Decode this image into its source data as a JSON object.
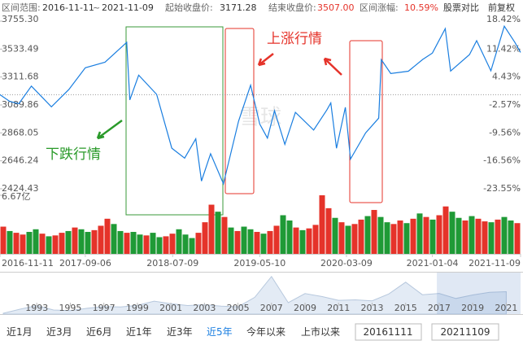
{
  "header": {
    "range_label": "区间范围:",
    "range_start": "2016-11-11",
    "range_sep": "~",
    "range_end": "2021-11-09",
    "start_label": "起始收盘价:",
    "start_price": 3171.28,
    "end_label": "结束收盘价:",
    "end_price": "3507.00",
    "change_label": "区间涨幅:",
    "change": "10.59%",
    "compare": "股票对比",
    "adjust": "前复权"
  },
  "chart_data": {
    "type": "line",
    "color": "#1a7ee0",
    "x": [
      "2016-11-11",
      "2016-12-15",
      "2017-01-16",
      "2017-03-01",
      "2017-05-10",
      "2017-07-10",
      "2017-09-06",
      "2017-11-14",
      "2018-01-29",
      "2018-02-09",
      "2018-03-12",
      "2018-05-14",
      "2018-07-06",
      "2018-08-20",
      "2018-09-28",
      "2018-10-18",
      "2018-11-19",
      "2019-01-03",
      "2019-02-25",
      "2019-04-08",
      "2019-05-10",
      "2019-06-06",
      "2019-07-01",
      "2019-08-06",
      "2019-09-12",
      "2019-11-15",
      "2019-12-31",
      "2020-01-14",
      "2020-02-03",
      "2020-03-05",
      "2020-03-23",
      "2020-05-15",
      "2020-06-30",
      "2020-07-09",
      "2020-08-11",
      "2020-10-12",
      "2020-12-01",
      "2021-01-04",
      "2021-02-18",
      "2021-03-09",
      "2021-05-14",
      "2021-06-08",
      "2021-07-28",
      "2021-09-13",
      "2021-10-20",
      "2021-11-09"
    ],
    "values": [
      3171.28,
      3118,
      3100,
      3240,
      3075,
      3212,
      3385,
      3430,
      3587,
      3130,
      3326,
      3174,
      2747,
      2668,
      2821,
      2486,
      2703,
      2464,
      2961,
      3247,
      2939,
      2827,
      3044,
      2777,
      3031,
      2891,
      3050,
      3106,
      2746,
      3071,
      2660,
      2868,
      2985,
      3450,
      3340,
      3358,
      3451,
      3502,
      3696,
      3359,
      3490,
      3600,
      3361,
      3715,
      3587,
      3507
    ],
    "xlim": [
      "2016-11-11",
      "2021-11-09"
    ],
    "xticks": [
      "2016-11-11",
      "2017-09-06",
      "2018-07-09",
      "2019-05-10",
      "2020-03-09",
      "2021-01-04",
      "2021-11-09"
    ],
    "ylim": [
      2424.43,
      3755.3
    ],
    "yticks": [
      {
        "value": 3755.3,
        "label": "3755.30"
      },
      3533.49,
      3311.68,
      3089.86,
      2868.05,
      2646.24,
      2424.43
    ],
    "y2lim": [
      -23.55,
      18.42
    ],
    "y2ticks": [
      {
        "value": 18.42,
        "label": "18.42%"
      },
      {
        "value": 11.42,
        "label": "11.42%"
      },
      {
        "value": 4.43,
        "label": "4.43%"
      },
      {
        "value": -2.57,
        "label": "-2.57%"
      },
      {
        "value": -9.56,
        "label": "-9.56%"
      },
      {
        "value": -16.56,
        "label": "-16.56%"
      },
      {
        "value": -23.55,
        "label": "-23.55%"
      }
    ],
    "up_color": "#e5332a",
    "down_color": "#1f9a36",
    "volume": {
      "ylim": [
        0,
        6.67
      ],
      "yticks": [
        {
          "value": 6.67,
          "label": "6.67亿"
        }
      ],
      "values": [
        3.1,
        2.6,
        2.4,
        2.2,
        2.5,
        2.8,
        2.3,
        2.0,
        2.1,
        2.4,
        2.6,
        3.0,
        2.8,
        2.5,
        2.7,
        3.2,
        4.0,
        3.4,
        2.6,
        2.4,
        2.5,
        2.2,
        2.1,
        2.4,
        1.9,
        2.0,
        2.3,
        2.8,
        2.2,
        1.8,
        2.4,
        3.6,
        5.6,
        4.8,
        4.2,
        3.0,
        2.6,
        3.1,
        2.8,
        2.5,
        2.3,
        2.6,
        3.2,
        4.4,
        3.8,
        3.0,
        2.7,
        2.9,
        3.3,
        6.67,
        5.2,
        4.1,
        3.6,
        3.2,
        3.4,
        3.9,
        4.3,
        5.0,
        4.2,
        3.6,
        3.4,
        3.8,
        3.5,
        4.0,
        4.6,
        4.2,
        3.9,
        4.4,
        5.4,
        4.8,
        4.1,
        3.8,
        4.3,
        4.0,
        3.7,
        3.6,
        3.9,
        4.2,
        3.8,
        3.5
      ],
      "colors": [
        "#e5332a",
        "#1f9a36",
        "#e5332a",
        "#e5332a",
        "#1f9a36",
        "#1f9a36",
        "#e5332a",
        "#1f9a36",
        "#e5332a",
        "#e5332a",
        "#1f9a36",
        "#e5332a",
        "#1f9a36",
        "#1f9a36",
        "#e5332a",
        "#e5332a",
        "#e5332a",
        "#1f9a36",
        "#1f9a36",
        "#e5332a",
        "#1f9a36",
        "#1f9a36",
        "#e5332a",
        "#1f9a36",
        "#1f9a36",
        "#e5332a",
        "#e5332a",
        "#1f9a36",
        "#1f9a36",
        "#1f9a36",
        "#e5332a",
        "#e5332a",
        "#e5332a",
        "#1f9a36",
        "#e5332a",
        "#1f9a36",
        "#e5332a",
        "#1f9a36",
        "#1f9a36",
        "#e5332a",
        "#1f9a36",
        "#e5332a",
        "#e5332a",
        "#1f9a36",
        "#1f9a36",
        "#e5332a",
        "#1f9a36",
        "#e5332a",
        "#e5332a",
        "#e5332a",
        "#e5332a",
        "#1f9a36",
        "#e5332a",
        "#1f9a36",
        "#e5332a",
        "#e5332a",
        "#1f9a36",
        "#e5332a",
        "#1f9a36",
        "#1f9a36",
        "#e5332a",
        "#e5332a",
        "#1f9a36",
        "#e5332a",
        "#1f9a36",
        "#e5332a",
        "#1f9a36",
        "#e5332a",
        "#e5332a",
        "#1f9a36",
        "#1f9a36",
        "#e5332a",
        "#1f9a36",
        "#e5332a",
        "#e5332a",
        "#1f9a36",
        "#e5332a",
        "#1f9a36",
        "#1f9a36",
        "#e5332a"
      ]
    },
    "navigator": {
      "x": [
        1991,
        1992,
        1993,
        1994,
        1995,
        1996,
        1997,
        1998,
        1999,
        2000,
        2001,
        2002,
        2003,
        2004,
        2005,
        2006,
        2007,
        2008,
        2009,
        2010,
        2011,
        2012,
        2013,
        2014,
        2015,
        2016,
        2017,
        2018,
        2019,
        2020,
        2021
      ],
      "values": [
        130,
        780,
        1360,
        650,
        560,
        920,
        1200,
        1150,
        1400,
        2070,
        1650,
        1360,
        1500,
        1270,
        1160,
        2680,
        6000,
        1820,
        3280,
        2810,
        2200,
        2270,
        2120,
        3230,
        5100,
        3100,
        3300,
        2490,
        3050,
        3470,
        3570
      ],
      "ylim": [
        0,
        6500
      ],
      "xlim": [
        1991,
        2022
      ],
      "xticks": [
        1993,
        1995,
        1997,
        1999,
        2001,
        2003,
        2005,
        2007,
        2009,
        2011,
        2013,
        2015,
        2017,
        2019,
        2021
      ]
    },
    "annotations": {
      "up": "上涨行情",
      "down": "下跌行情"
    },
    "watermark": "雪球"
  },
  "controls": {
    "buttons": [
      "近1月",
      "近3月",
      "近6月",
      "近1年",
      "近3年",
      "近5年",
      "今年以来",
      "上市以来"
    ],
    "start_input": "20161111",
    "end_input": "20211109"
  }
}
